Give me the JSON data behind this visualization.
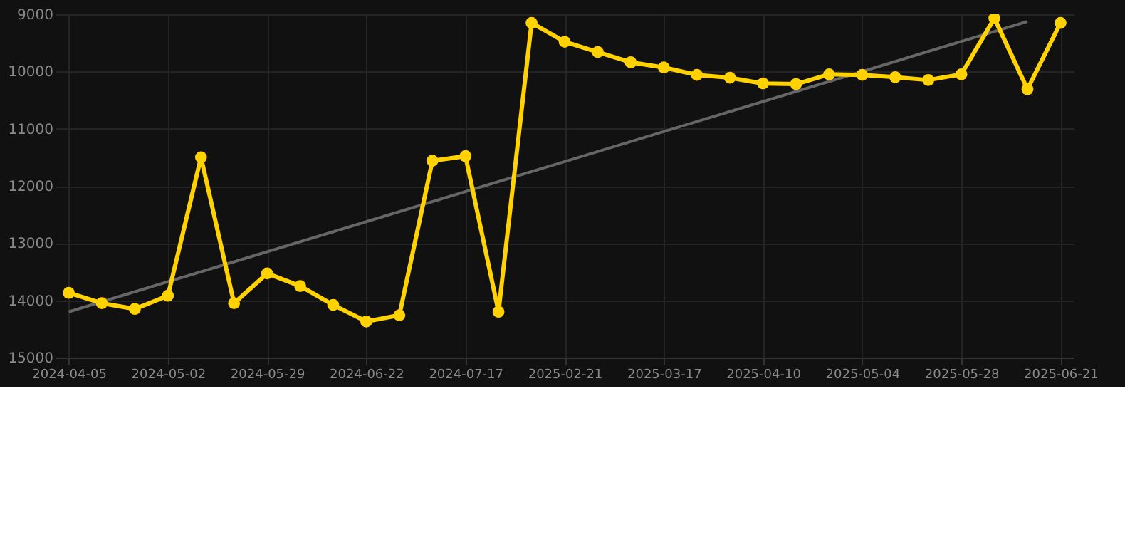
{
  "chart_data": {
    "type": "line",
    "categories": [
      "2024-04-05",
      null,
      null,
      "2024-05-02",
      null,
      null,
      "2024-05-29",
      null,
      null,
      "2024-06-22",
      null,
      null,
      "2024-07-17",
      null,
      null,
      "2025-02-21",
      null,
      null,
      "2025-03-17",
      null,
      null,
      "2025-04-10",
      null,
      null,
      "2025-05-04",
      null,
      null,
      "2025-05-28",
      null,
      null,
      "2025-06-21"
    ],
    "series": [
      {
        "color": "#666666",
        "marker": "none",
        "values": [
          14200,
          null,
          null,
          null,
          null,
          null,
          null,
          null,
          null,
          null,
          null,
          null,
          null,
          null,
          null,
          null,
          null,
          null,
          null,
          null,
          null,
          null,
          null,
          null,
          null,
          null,
          null,
          null,
          null,
          9125,
          null
        ]
      },
      {
        "color": "#ffd200",
        "marker": "circle",
        "values": [
          13870,
          14050,
          14150,
          13920,
          11500,
          14050,
          13530,
          13750,
          14080,
          14370,
          14260,
          11560,
          11480,
          14200,
          9150,
          9480,
          9660,
          9840,
          9930,
          10060,
          10110,
          10210,
          10220,
          10050,
          10060,
          10100,
          10150,
          10050,
          9070,
          10310,
          9150
        ]
      }
    ],
    "ylim": [
      15000,
      9000
    ],
    "yticks": [
      9000,
      10000,
      11000,
      12000,
      13000,
      14000,
      15000
    ],
    "grid": true,
    "line_style": "solid"
  }
}
